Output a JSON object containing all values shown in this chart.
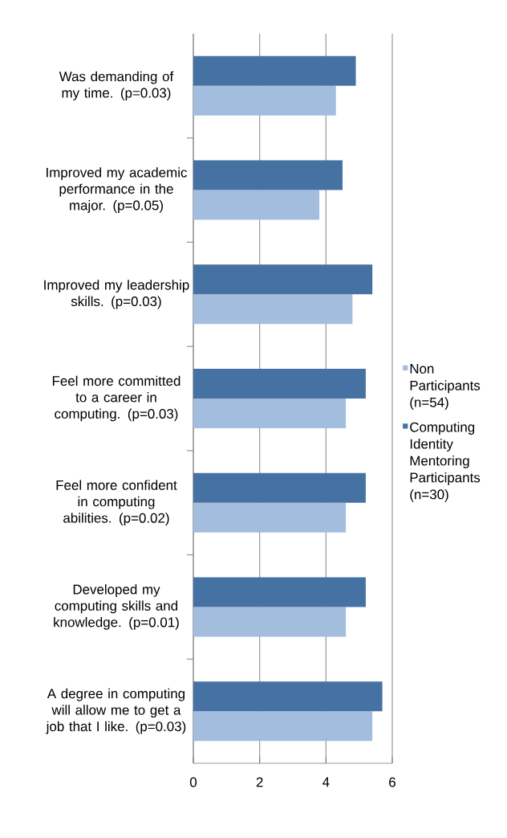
{
  "chart_data": {
    "type": "bar",
    "orientation": "horizontal",
    "categories": [
      "Was demanding of my time. (p=0.03)",
      "Improved my academic performance in the major. (p=0.05)",
      "Improved my leadership skills. (p=0.03)",
      "Feel more committed to a career in computing. (p=0.03)",
      "Feel more confident in computing abilities. (p=0.02)",
      "Developed my computing skills and knowledge. (p=0.01)",
      "A degree in computing will allow me to get a job that I like. (p=0.03)"
    ],
    "series": [
      {
        "name": "Non Participants (n=54)",
        "color": "#a3bddf",
        "values": [
          4.3,
          3.8,
          4.8,
          4.6,
          4.6,
          4.6,
          5.4
        ]
      },
      {
        "name": "Computing Identity Mentoring Participants (n=30)",
        "color": "#4672a3",
        "values": [
          4.9,
          4.5,
          5.4,
          5.2,
          5.2,
          5.2,
          5.7
        ]
      }
    ],
    "xlim": [
      0,
      6
    ],
    "xticks": [
      0,
      2,
      4,
      6
    ],
    "grid": "x",
    "legend": "right"
  }
}
